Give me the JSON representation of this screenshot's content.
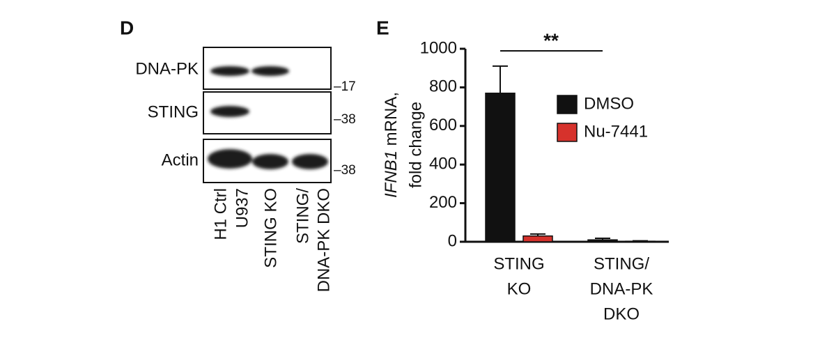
{
  "panel_d": {
    "label": "D",
    "rows": [
      {
        "name": "DNA-PK",
        "marker": "–17"
      },
      {
        "name": "STING",
        "marker": "–38"
      },
      {
        "name": "Actin",
        "marker": "–38"
      }
    ],
    "lanes": [
      [
        "H1 Ctrl",
        "U937"
      ],
      [
        "STING KO"
      ],
      [
        "STING/",
        "DNA-PK DKO"
      ]
    ]
  },
  "chart_data": {
    "type": "bar",
    "panel_label": "E",
    "y_label": {
      "gene": "IFNB1",
      "rest": " mRNA,",
      "line2": "fold change"
    },
    "categories": [
      [
        "STING",
        "KO"
      ],
      [
        "STING/",
        "DNA-PK",
        "DKO"
      ]
    ],
    "series": [
      {
        "name": "DMSO",
        "color": "#111111",
        "values": [
          770,
          10
        ],
        "errors": [
          140,
          8
        ]
      },
      {
        "name": "Nu-7441",
        "color": "#d6322c",
        "values": [
          30,
          3
        ],
        "errors": [
          10,
          2
        ]
      }
    ],
    "ylim": [
      0,
      1000
    ],
    "yticks": [
      0,
      200,
      400,
      600,
      800,
      1000
    ],
    "annotation": "**"
  }
}
